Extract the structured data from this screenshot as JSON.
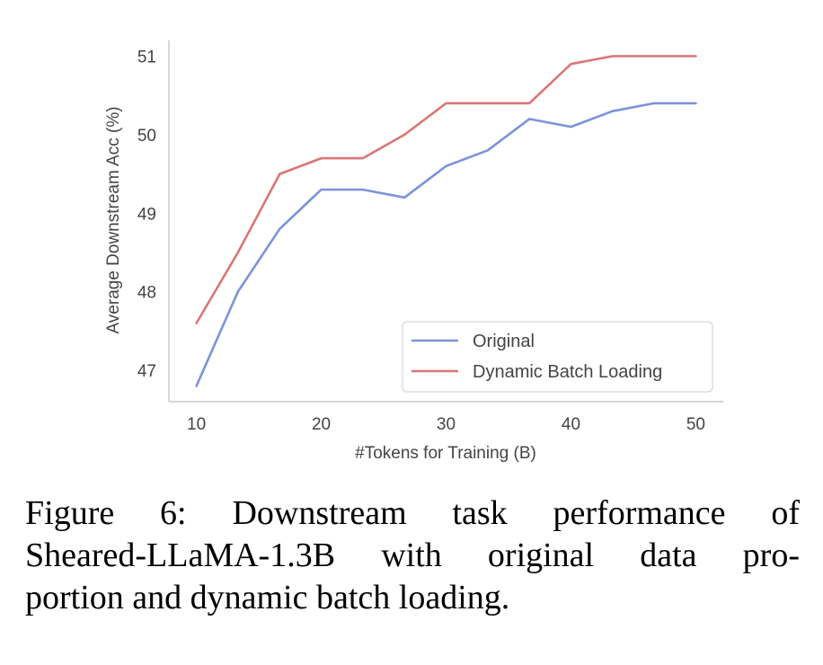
{
  "chart_data": {
    "type": "line",
    "title": "",
    "xlabel": "#Tokens for Training (B)",
    "ylabel": "Average Downstream Acc (%)",
    "xlim": [
      7.8,
      52.2
    ],
    "ylim": [
      46.6,
      51.2
    ],
    "xticks": [
      10,
      20,
      30,
      40,
      50
    ],
    "yticks": [
      47,
      48,
      49,
      50,
      51
    ],
    "grid": false,
    "legend_position": "bottom-right",
    "x": [
      10,
      13.33,
      16.67,
      20,
      23.33,
      26.67,
      30,
      33.33,
      36.67,
      40,
      43.33,
      46.67,
      50
    ],
    "series": [
      {
        "name": "Original",
        "color": "#7b93db",
        "values": [
          46.8,
          48.0,
          48.8,
          49.3,
          49.3,
          49.2,
          49.6,
          49.8,
          50.2,
          50.1,
          50.3,
          50.4,
          50.4
        ]
      },
      {
        "name": "Dynamic Batch Loading",
        "color": "#d97676",
        "values": [
          47.6,
          48.5,
          49.5,
          49.7,
          49.7,
          50.0,
          50.4,
          50.4,
          50.4,
          50.9,
          51.0,
          51.0,
          51.0
        ]
      }
    ]
  },
  "caption": {
    "line1": "Figure 6:  Downstream task performance of",
    "line2": "Sheared-LLaMA-1.3B with original data pro-",
    "line3": "portion and dynamic batch loading."
  },
  "colors": {
    "axis": "#cccccc",
    "text": "#444444"
  }
}
